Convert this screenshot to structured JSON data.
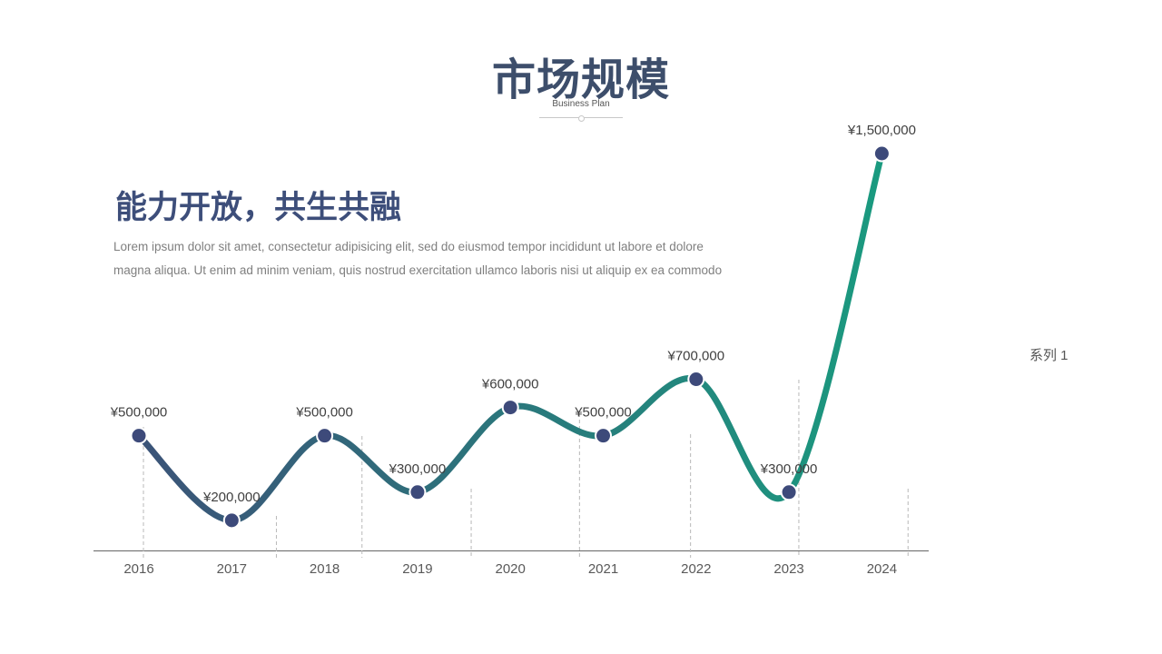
{
  "header": {
    "title": "市场规模",
    "subtitle": "Business Plan"
  },
  "intro": {
    "headline": "能力开放，共生共融",
    "body": "Lorem ipsum dolor sit amet, consectetur adipisicing elit, sed do eiusmod tempor incididunt ut labore et dolore magna aliqua. Ut enim ad minim veniam, quis nostrud exercitation ullamco laboris nisi ut aliquip ex ea commodo"
  },
  "legend": {
    "label": "系列 1"
  },
  "colors": {
    "line_start": "#3b5378",
    "line_end": "#1a9a7f",
    "marker": "#3d4a7a",
    "title": "#3d4e6b"
  },
  "chart_data": {
    "type": "line",
    "smooth": true,
    "categories": [
      "2016",
      "2017",
      "2018",
      "2019",
      "2020",
      "2021",
      "2022",
      "2023",
      "2024"
    ],
    "series": [
      {
        "name": "系列 1",
        "values": [
          500000,
          200000,
          500000,
          300000,
          600000,
          500000,
          700000,
          300000,
          1500000
        ],
        "labels": [
          "¥500,000",
          "¥200,000",
          "¥500,000",
          "¥300,000",
          "¥600,000",
          "¥500,000",
          "¥700,000",
          "¥300,000",
          "¥1,500,000"
        ]
      }
    ],
    "legend_position": "right",
    "grid": false
  }
}
